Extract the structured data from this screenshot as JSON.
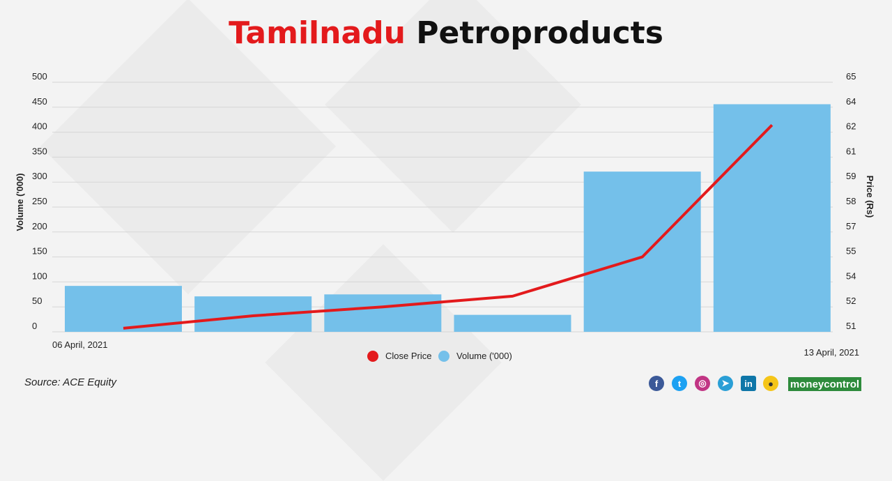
{
  "title": {
    "highlight": "Tamilnadu",
    "rest": "Petroproducts"
  },
  "chart_data": {
    "type": "bar+line",
    "x_start_label": "06 April, 2021",
    "x_end_label": "13 April, 2021",
    "ylabel_left": "Volume ('000)",
    "ylabel_right": "Price (Rs)",
    "left_ticks": [
      "500",
      "450",
      "400",
      "350",
      "300",
      "250",
      "200",
      "150",
      "100",
      "50",
      "0"
    ],
    "right_ticks": [
      "65",
      "64",
      "62",
      "61",
      "59",
      "58",
      "57",
      "55",
      "54",
      "52",
      "51"
    ],
    "ylim_left": [
      0,
      500
    ],
    "ylim_right": [
      51,
      65
    ],
    "grid": true,
    "legend_position": "bottom-center",
    "series": [
      {
        "name": "Volume ('000)",
        "type": "bar",
        "color": "#74c0ea",
        "values": [
          92,
          71,
          75,
          34,
          321,
          456
        ]
      },
      {
        "name": "Close Price",
        "type": "line",
        "color": "#e31a1c",
        "values": [
          51.2,
          51.9,
          52.4,
          53.0,
          55.2,
          62.6
        ]
      }
    ]
  },
  "footer": {
    "source": "Source: ACE Equity",
    "brand": "moneycontrol",
    "social_icons": [
      "facebook-icon",
      "twitter-icon",
      "instagram-icon",
      "telegram-icon",
      "linkedin-icon",
      "koo-icon"
    ]
  }
}
